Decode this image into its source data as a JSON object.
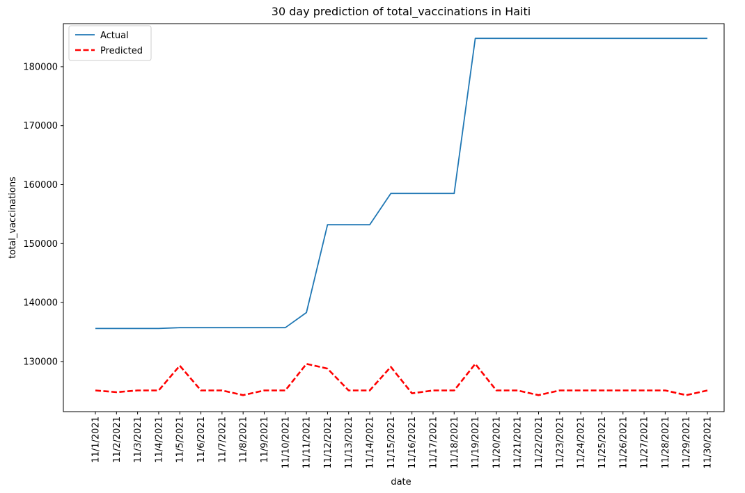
{
  "chart_data": {
    "type": "line",
    "title": "30 day prediction of total_vaccinations in Haiti",
    "xlabel": "date",
    "ylabel": "total_vaccinations",
    "categories": [
      "11/1/2021",
      "11/2/2021",
      "11/3/2021",
      "11/4/2021",
      "11/5/2021",
      "11/6/2021",
      "11/7/2021",
      "11/8/2021",
      "11/9/2021",
      "11/10/2021",
      "11/11/2021",
      "11/12/2021",
      "11/13/2021",
      "11/14/2021",
      "11/15/2021",
      "11/16/2021",
      "11/17/2021",
      "11/18/2021",
      "11/19/2021",
      "11/20/2021",
      "11/21/2021",
      "11/22/2021",
      "11/23/2021",
      "11/24/2021",
      "11/25/2021",
      "11/26/2021",
      "11/27/2021",
      "11/28/2021",
      "11/29/2021",
      "11/30/2021"
    ],
    "series": [
      {
        "name": "Actual",
        "color": "#1f77b4",
        "style": "solid",
        "values": [
          135600,
          135600,
          135600,
          135600,
          135750,
          135750,
          135750,
          135750,
          135750,
          135750,
          138300,
          153200,
          153200,
          153200,
          158500,
          158500,
          158500,
          158500,
          184800,
          184800,
          184800,
          184800,
          184800,
          184800,
          184800,
          184800,
          184800,
          184800,
          184800,
          184800
        ]
      },
      {
        "name": "Predicted",
        "color": "#ff0000",
        "style": "dashed",
        "values": [
          125100,
          124800,
          125100,
          125100,
          129300,
          125100,
          125100,
          124300,
          125100,
          125100,
          129600,
          128800,
          125100,
          125100,
          129100,
          124600,
          125100,
          125100,
          129600,
          125100,
          125100,
          124300,
          125100,
          125100,
          125100,
          125100,
          125100,
          125100,
          124300,
          125100
        ]
      }
    ],
    "yticks": [
      130000,
      140000,
      150000,
      160000,
      170000,
      180000
    ],
    "ylim": [
      121500,
      187300
    ],
    "grid": false,
    "legend": "top-left"
  }
}
